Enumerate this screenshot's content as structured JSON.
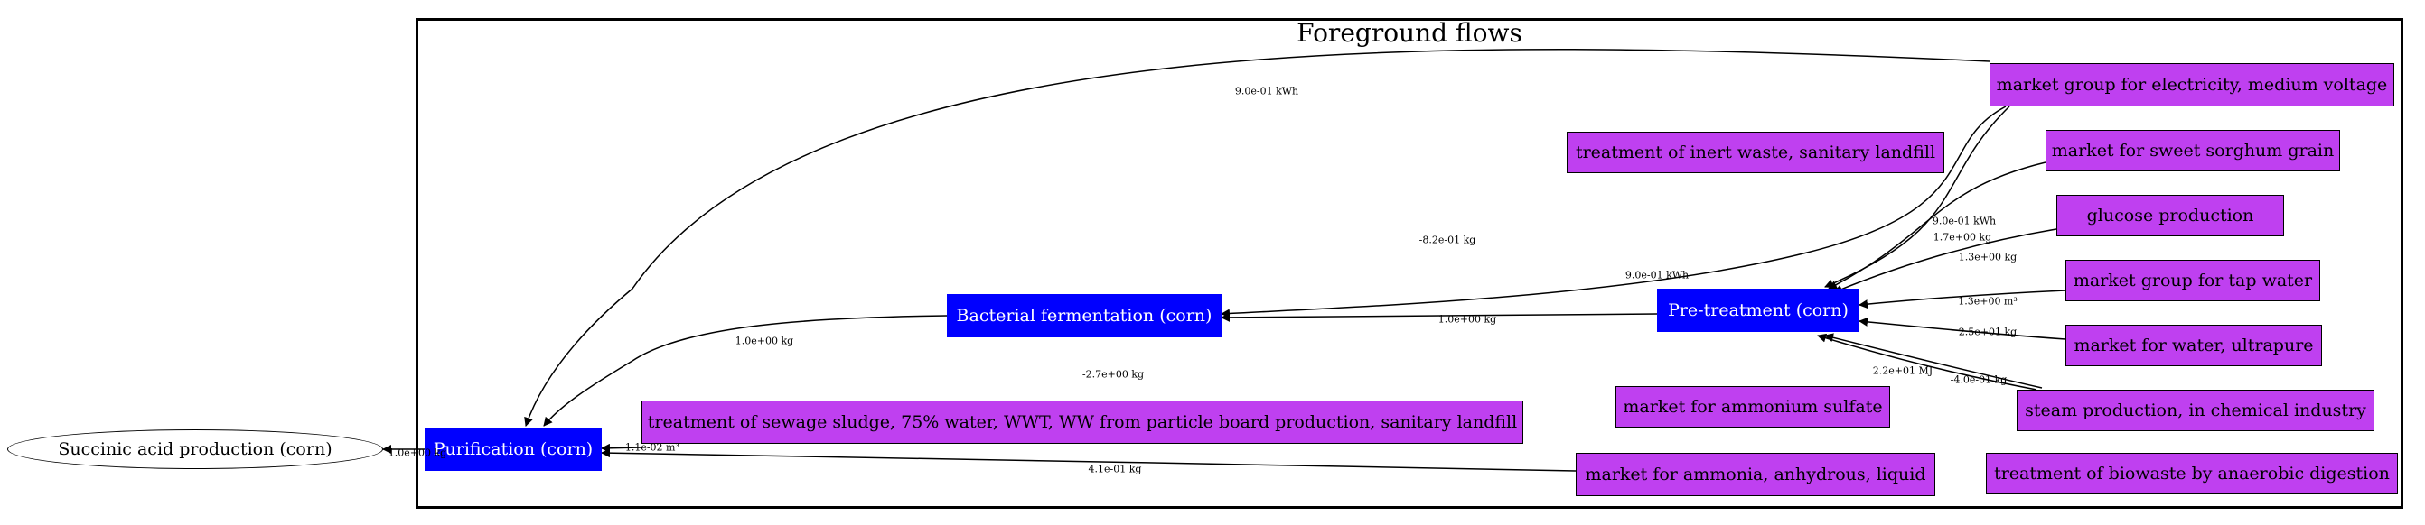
{
  "cluster_title": "Foreground flows",
  "nodes": {
    "succinic": "Succinic acid production (corn)",
    "purification": "Purification (corn)",
    "bacterial": "Bacterial fermentation (corn)",
    "pretreatment": "Pre-treatment (corn)",
    "electricity": "market group for electricity, medium voltage",
    "inert_waste": "treatment of inert waste, sanitary landfill",
    "sorghum": "market for sweet sorghum grain",
    "glucose": "glucose production",
    "tap_water": "market group for tap water",
    "ultrapure": "market for water, ultrapure",
    "steam": "steam production, in chemical industry",
    "ammonium_sulfate": "market for ammonium sulfate",
    "biowaste": "treatment of biowaste by anaerobic digestion",
    "ammonia": "market for ammonia, anhydrous, liquid",
    "sewage": "treatment of sewage sludge, 75% water, WWT, WW from particle board production, sanitary landfill"
  },
  "edge_labels": {
    "elec_purif": "9.0e-01 kWh",
    "elec_bact": "-8.2e-01 kg",
    "elec_bact_2": "9.0e-01 kWh",
    "elec_pre": "9.0e-01 kWh",
    "sorghum_pre": "1.7e+00 kg",
    "glucose_pre": "1.3e+00 kg",
    "tap_pre": "1.3e+00 m³",
    "ultrapure_pre": "2.5e+01 kg",
    "steam_pre_a": "2.2e+01 MJ",
    "steam_pre_b": "-4.0e-01 kg",
    "pre_bact": "1.0e+00 kg",
    "bact_purif": "1.0e+00 kg",
    "bact_other": "-2.7e+00 kg",
    "sewage_purif": "-1.1e-02 m³",
    "ammonia_purif": "4.1e-01 kg",
    "purif_succ": "1.0e+00 kg"
  }
}
